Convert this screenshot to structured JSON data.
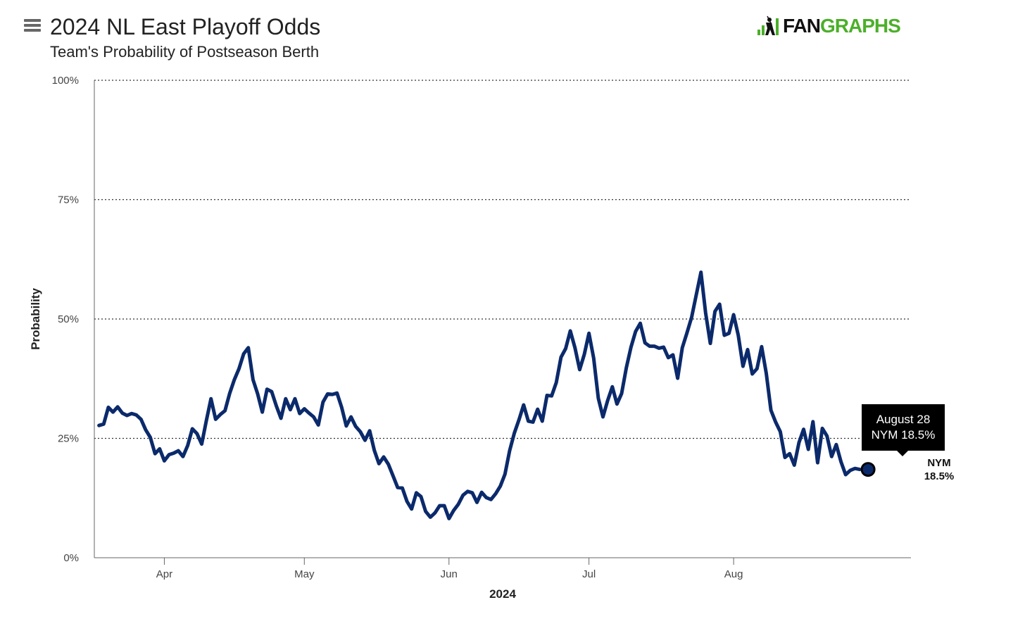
{
  "header": {
    "title": "2024 NL East Playoff Odds",
    "subtitle": "Team's Probability of Postseason Berth"
  },
  "logo": {
    "text_dark": "FAN",
    "text_green": "GRAPHS"
  },
  "icons": {
    "menu": "hamburger-menu-icon",
    "logo_mark": "batter-logo-icon"
  },
  "colors": {
    "line": "#0b2a6b",
    "logo_green": "#4caf2a",
    "tooltip_bg": "#000000"
  },
  "tooltip": {
    "date": "August 28",
    "value": "NYM 18.5%"
  },
  "chart_data": {
    "type": "line",
    "xlabel": "2024",
    "ylabel": "Probability",
    "ylim": [
      0,
      100
    ],
    "y_ticks": [
      "0%",
      "25%",
      "50%",
      "75%",
      "100%"
    ],
    "x_ticks": [
      {
        "label": "Apr",
        "date": "2024-04-01"
      },
      {
        "label": "May",
        "date": "2024-05-01"
      },
      {
        "label": "Jun",
        "date": "2024-06-01"
      },
      {
        "label": "Jul",
        "date": "2024-07-01"
      },
      {
        "label": "Aug",
        "date": "2024-08-01"
      }
    ],
    "x_range": [
      "2024-03-17",
      "2024-09-08"
    ],
    "grid": "horizontal dotted",
    "series": [
      {
        "name": "NYM",
        "end_label": "NYM",
        "end_value_label": "18.5%",
        "points": [
          [
            "2024-03-18",
            27.7
          ],
          [
            "2024-03-19",
            28.0
          ],
          [
            "2024-03-20",
            31.5
          ],
          [
            "2024-03-21",
            30.5
          ],
          [
            "2024-03-22",
            31.6
          ],
          [
            "2024-03-23",
            30.3
          ],
          [
            "2024-03-24",
            29.8
          ],
          [
            "2024-03-25",
            30.2
          ],
          [
            "2024-03-26",
            29.9
          ],
          [
            "2024-03-27",
            29.0
          ],
          [
            "2024-03-28",
            26.8
          ],
          [
            "2024-03-29",
            25.2
          ],
          [
            "2024-03-30",
            21.8
          ],
          [
            "2024-03-31",
            22.8
          ],
          [
            "2024-04-01",
            20.3
          ],
          [
            "2024-04-02",
            21.6
          ],
          [
            "2024-04-03",
            21.9
          ],
          [
            "2024-04-04",
            22.4
          ],
          [
            "2024-04-05",
            21.2
          ],
          [
            "2024-04-06",
            23.5
          ],
          [
            "2024-04-07",
            27.0
          ],
          [
            "2024-04-08",
            26.0
          ],
          [
            "2024-04-09",
            23.8
          ],
          [
            "2024-04-10",
            28.7
          ],
          [
            "2024-04-11",
            33.3
          ],
          [
            "2024-04-12",
            29.0
          ],
          [
            "2024-04-13",
            30.0
          ],
          [
            "2024-04-14",
            30.8
          ],
          [
            "2024-04-15",
            34.4
          ],
          [
            "2024-04-16",
            37.3
          ],
          [
            "2024-04-17",
            39.6
          ],
          [
            "2024-04-18",
            42.7
          ],
          [
            "2024-04-19",
            44.0
          ],
          [
            "2024-04-20",
            37.3
          ],
          [
            "2024-04-21",
            34.3
          ],
          [
            "2024-04-22",
            30.5
          ],
          [
            "2024-04-23",
            35.3
          ],
          [
            "2024-04-24",
            34.8
          ],
          [
            "2024-04-25",
            31.8
          ],
          [
            "2024-04-26",
            29.2
          ],
          [
            "2024-04-27",
            33.3
          ],
          [
            "2024-04-28",
            31.0
          ],
          [
            "2024-04-29",
            33.3
          ],
          [
            "2024-04-30",
            30.2
          ],
          [
            "2024-05-01",
            31.2
          ],
          [
            "2024-05-02",
            30.3
          ],
          [
            "2024-05-03",
            29.5
          ],
          [
            "2024-05-04",
            27.8
          ],
          [
            "2024-05-05",
            32.6
          ],
          [
            "2024-05-06",
            34.3
          ],
          [
            "2024-05-07",
            34.2
          ],
          [
            "2024-05-08",
            34.5
          ],
          [
            "2024-05-09",
            31.5
          ],
          [
            "2024-05-10",
            27.6
          ],
          [
            "2024-05-11",
            29.5
          ],
          [
            "2024-05-12",
            27.5
          ],
          [
            "2024-05-13",
            26.4
          ],
          [
            "2024-05-14",
            24.6
          ],
          [
            "2024-05-15",
            26.6
          ],
          [
            "2024-05-16",
            22.5
          ],
          [
            "2024-05-17",
            19.7
          ],
          [
            "2024-05-18",
            21.1
          ],
          [
            "2024-05-19",
            19.6
          ],
          [
            "2024-05-20",
            17.2
          ],
          [
            "2024-05-21",
            14.7
          ],
          [
            "2024-05-22",
            14.6
          ],
          [
            "2024-05-23",
            11.8
          ],
          [
            "2024-05-24",
            10.2
          ],
          [
            "2024-05-25",
            13.6
          ],
          [
            "2024-05-26",
            12.8
          ],
          [
            "2024-05-27",
            9.7
          ],
          [
            "2024-05-28",
            8.5
          ],
          [
            "2024-05-29",
            9.4
          ],
          [
            "2024-05-30",
            10.9
          ],
          [
            "2024-05-31",
            10.9
          ],
          [
            "2024-06-01",
            8.2
          ],
          [
            "2024-06-02",
            9.9
          ],
          [
            "2024-06-03",
            11.2
          ],
          [
            "2024-06-04",
            13.1
          ],
          [
            "2024-06-05",
            13.9
          ],
          [
            "2024-06-06",
            13.6
          ],
          [
            "2024-06-07",
            11.6
          ],
          [
            "2024-06-08",
            13.7
          ],
          [
            "2024-06-09",
            12.6
          ],
          [
            "2024-06-10",
            12.2
          ],
          [
            "2024-06-11",
            13.4
          ],
          [
            "2024-06-12",
            15.0
          ],
          [
            "2024-06-13",
            17.5
          ],
          [
            "2024-06-14",
            22.4
          ],
          [
            "2024-06-15",
            26.1
          ],
          [
            "2024-06-16",
            28.9
          ],
          [
            "2024-06-17",
            32.0
          ],
          [
            "2024-06-18",
            28.6
          ],
          [
            "2024-06-19",
            28.4
          ],
          [
            "2024-06-20",
            31.1
          ],
          [
            "2024-06-21",
            28.6
          ],
          [
            "2024-06-22",
            34.0
          ],
          [
            "2024-06-23",
            33.9
          ],
          [
            "2024-06-24",
            36.7
          ],
          [
            "2024-06-25",
            42.0
          ],
          [
            "2024-06-26",
            43.8
          ],
          [
            "2024-06-27",
            47.5
          ],
          [
            "2024-06-28",
            44.0
          ],
          [
            "2024-06-29",
            39.4
          ],
          [
            "2024-06-30",
            42.6
          ],
          [
            "2024-07-01",
            47.0
          ],
          [
            "2024-07-02",
            41.8
          ],
          [
            "2024-07-03",
            33.4
          ],
          [
            "2024-07-04",
            29.5
          ],
          [
            "2024-07-05",
            32.9
          ],
          [
            "2024-07-06",
            35.8
          ],
          [
            "2024-07-07",
            32.2
          ],
          [
            "2024-07-08",
            34.4
          ],
          [
            "2024-07-09",
            39.8
          ],
          [
            "2024-07-10",
            44.1
          ],
          [
            "2024-07-11",
            47.4
          ],
          [
            "2024-07-12",
            49.1
          ],
          [
            "2024-07-13",
            45.0
          ],
          [
            "2024-07-14",
            44.3
          ],
          [
            "2024-07-15",
            44.3
          ],
          [
            "2024-07-16",
            43.9
          ],
          [
            "2024-07-17",
            44.1
          ],
          [
            "2024-07-18",
            41.9
          ],
          [
            "2024-07-19",
            42.5
          ],
          [
            "2024-07-20",
            37.6
          ],
          [
            "2024-07-21",
            44.0
          ],
          [
            "2024-07-22",
            47.1
          ],
          [
            "2024-07-23",
            50.4
          ],
          [
            "2024-07-24",
            55.1
          ],
          [
            "2024-07-25",
            59.8
          ],
          [
            "2024-07-26",
            51.3
          ],
          [
            "2024-07-27",
            44.9
          ],
          [
            "2024-07-28",
            51.6
          ],
          [
            "2024-07-29",
            53.1
          ],
          [
            "2024-07-30",
            46.6
          ],
          [
            "2024-07-31",
            47.0
          ],
          [
            "2024-08-01",
            50.9
          ],
          [
            "2024-08-02",
            46.6
          ],
          [
            "2024-08-03",
            40.1
          ],
          [
            "2024-08-04",
            43.6
          ],
          [
            "2024-08-05",
            38.5
          ],
          [
            "2024-08-06",
            39.6
          ],
          [
            "2024-08-07",
            44.2
          ],
          [
            "2024-08-08",
            38.6
          ],
          [
            "2024-08-09",
            30.9
          ],
          [
            "2024-08-10",
            28.4
          ],
          [
            "2024-08-11",
            26.4
          ],
          [
            "2024-08-12",
            21.0
          ],
          [
            "2024-08-13",
            21.8
          ],
          [
            "2024-08-14",
            19.4
          ],
          [
            "2024-08-15",
            24.1
          ],
          [
            "2024-08-16",
            26.9
          ],
          [
            "2024-08-17",
            22.7
          ],
          [
            "2024-08-18",
            28.5
          ],
          [
            "2024-08-19",
            19.9
          ],
          [
            "2024-08-20",
            27.1
          ],
          [
            "2024-08-21",
            25.5
          ],
          [
            "2024-08-22",
            21.2
          ],
          [
            "2024-08-23",
            23.7
          ],
          [
            "2024-08-24",
            20.1
          ],
          [
            "2024-08-25",
            17.4
          ],
          [
            "2024-08-26",
            18.3
          ],
          [
            "2024-08-27",
            18.7
          ],
          [
            "2024-08-28",
            18.5
          ]
        ]
      }
    ]
  }
}
